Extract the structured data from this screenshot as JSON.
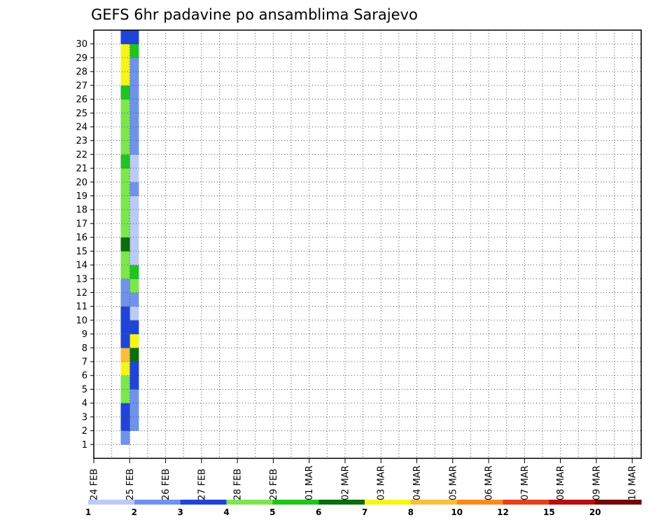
{
  "chart_data": {
    "type": "heatmap",
    "title": "GEFS 6hr padavine po ansamblima Sarajevo",
    "xlabel": "",
    "ylabel": "",
    "x_tick_labels": [
      "24 FEB",
      "25 FEB",
      "26 FEB",
      "27 FEB",
      "28 FEB",
      "29 FEB",
      "01 MAR",
      "02 MAR",
      "03 MAR",
      "04 MAR",
      "05 MAR",
      "06 MAR",
      "07 MAR",
      "08 MAR",
      "09 MAR",
      "10 MAR"
    ],
    "y_tick_labels": [
      "1",
      "2",
      "3",
      "4",
      "5",
      "6",
      "7",
      "8",
      "9",
      "10",
      "11",
      "12",
      "13",
      "14",
      "15",
      "16",
      "17",
      "18",
      "19",
      "20",
      "21",
      "22",
      "23",
      "24",
      "25",
      "26",
      "27",
      "28",
      "29",
      "30"
    ],
    "time_steps": 61,
    "members": 31,
    "grid": true,
    "colorbar": {
      "levels": [
        "1",
        "2",
        "3",
        "4",
        "5",
        "6",
        "7",
        "8",
        "10",
        "12",
        "15",
        "20"
      ],
      "colors": [
        "#bccbf5",
        "#6f93ea",
        "#1f44d9",
        "#7ce64f",
        "#21c321",
        "#0a6e0a",
        "#f5f51a",
        "#fbbd3f",
        "#fa8a20",
        "#e5401a",
        "#b50f0f",
        "#730606"
      ]
    },
    "cells": [
      [
        2,
        4,
        2
      ],
      [
        3,
        4,
        2
      ],
      [
        4,
        4,
        2
      ],
      [
        5,
        4,
        3
      ],
      [
        6,
        4,
        3
      ],
      [
        7,
        4,
        6
      ],
      [
        8,
        4,
        7
      ],
      [
        9,
        4,
        3
      ],
      [
        10,
        4,
        1
      ],
      [
        11,
        4,
        2
      ],
      [
        12,
        4,
        4
      ],
      [
        13,
        4,
        5
      ],
      [
        14,
        4,
        1
      ],
      [
        15,
        4,
        1
      ],
      [
        16,
        4,
        1
      ],
      [
        17,
        4,
        1
      ],
      [
        18,
        4,
        1
      ],
      [
        19,
        4,
        2
      ],
      [
        20,
        4,
        1
      ],
      [
        21,
        4,
        1
      ],
      [
        22,
        4,
        2
      ],
      [
        23,
        4,
        2
      ],
      [
        24,
        4,
        2
      ],
      [
        25,
        4,
        2
      ],
      [
        26,
        4,
        2
      ],
      [
        27,
        4,
        2
      ],
      [
        28,
        4,
        2
      ],
      [
        29,
        4,
        5
      ],
      [
        30,
        4,
        3
      ],
      [
        1,
        3,
        2
      ],
      [
        2,
        3,
        3
      ],
      [
        3,
        3,
        3
      ],
      [
        4,
        3,
        4
      ],
      [
        5,
        3,
        4
      ],
      [
        6,
        3,
        7
      ],
      [
        7,
        3,
        8
      ],
      [
        8,
        3,
        3
      ],
      [
        9,
        3,
        3
      ],
      [
        10,
        3,
        3
      ],
      [
        11,
        3,
        2
      ],
      [
        12,
        3,
        2
      ],
      [
        13,
        3,
        4
      ],
      [
        14,
        3,
        4
      ],
      [
        15,
        3,
        6
      ],
      [
        16,
        3,
        4
      ],
      [
        17,
        3,
        4
      ],
      [
        18,
        3,
        4
      ],
      [
        19,
        3,
        4
      ],
      [
        20,
        3,
        4
      ],
      [
        21,
        3,
        5
      ],
      [
        22,
        3,
        4
      ],
      [
        23,
        3,
        4
      ],
      [
        24,
        3,
        4
      ],
      [
        25,
        3,
        4
      ],
      [
        26,
        3,
        5
      ],
      [
        27,
        3,
        7
      ],
      [
        28,
        3,
        7
      ],
      [
        29,
        3,
        7
      ],
      [
        30,
        3,
        3
      ]
    ]
  }
}
